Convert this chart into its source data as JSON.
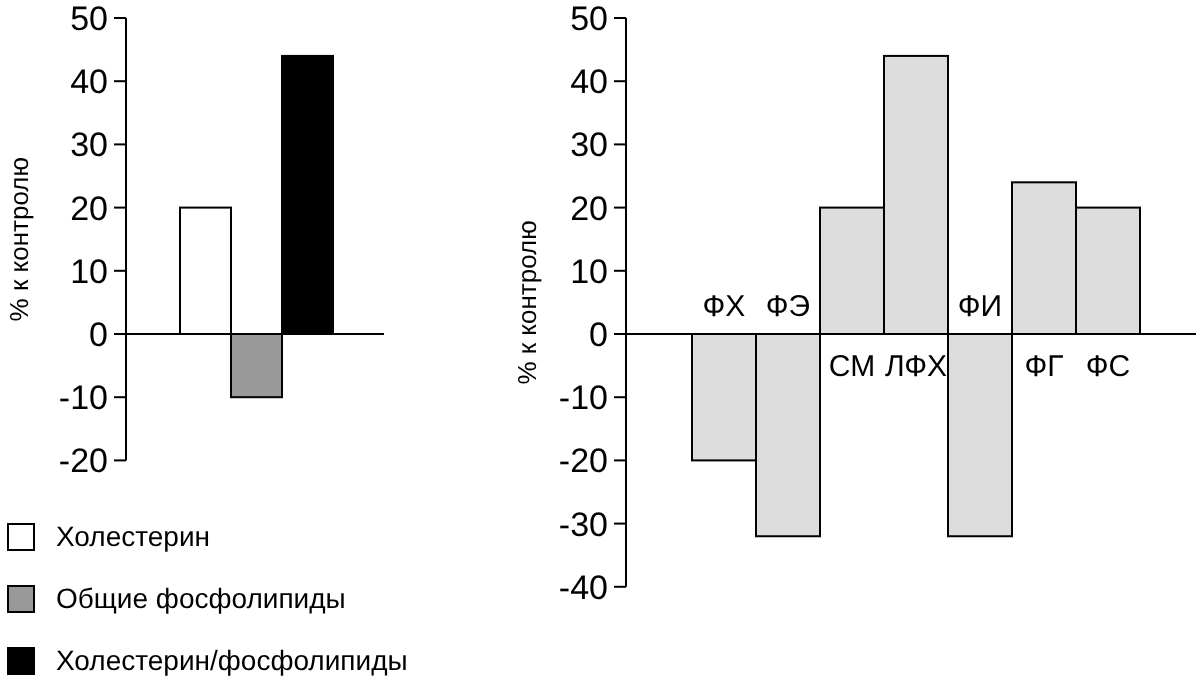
{
  "chart_data": [
    {
      "type": "bar",
      "ylabel": "% к контролю",
      "categories": [
        null
      ],
      "ylim": [
        -20,
        50
      ],
      "yticks": [
        -20,
        -10,
        0,
        10,
        20,
        30,
        40,
        50
      ],
      "legend": "bottom left",
      "series": [
        {
          "name": "Холестерин",
          "color": "#ffffff",
          "values": [
            20
          ]
        },
        {
          "name": "Общие фосфолипиды",
          "color": "#999999",
          "values": [
            -10
          ]
        },
        {
          "name": "Холестерин/фосфолипиды",
          "color": "#000000",
          "values": [
            44
          ]
        }
      ]
    },
    {
      "type": "bar",
      "ylabel": "% к контролю",
      "categories": [
        "ФХ",
        "ФЭ",
        "СМ",
        "ЛФХ",
        "ФИ",
        "ФГ",
        "ФС"
      ],
      "values": [
        -20,
        -32,
        20,
        44,
        -32,
        24,
        20
      ],
      "color": "#dddddd",
      "ylim": [
        -40,
        50
      ],
      "yticks": [
        -40,
        -30,
        -20,
        -10,
        0,
        10,
        20,
        30,
        40,
        50
      ]
    }
  ]
}
